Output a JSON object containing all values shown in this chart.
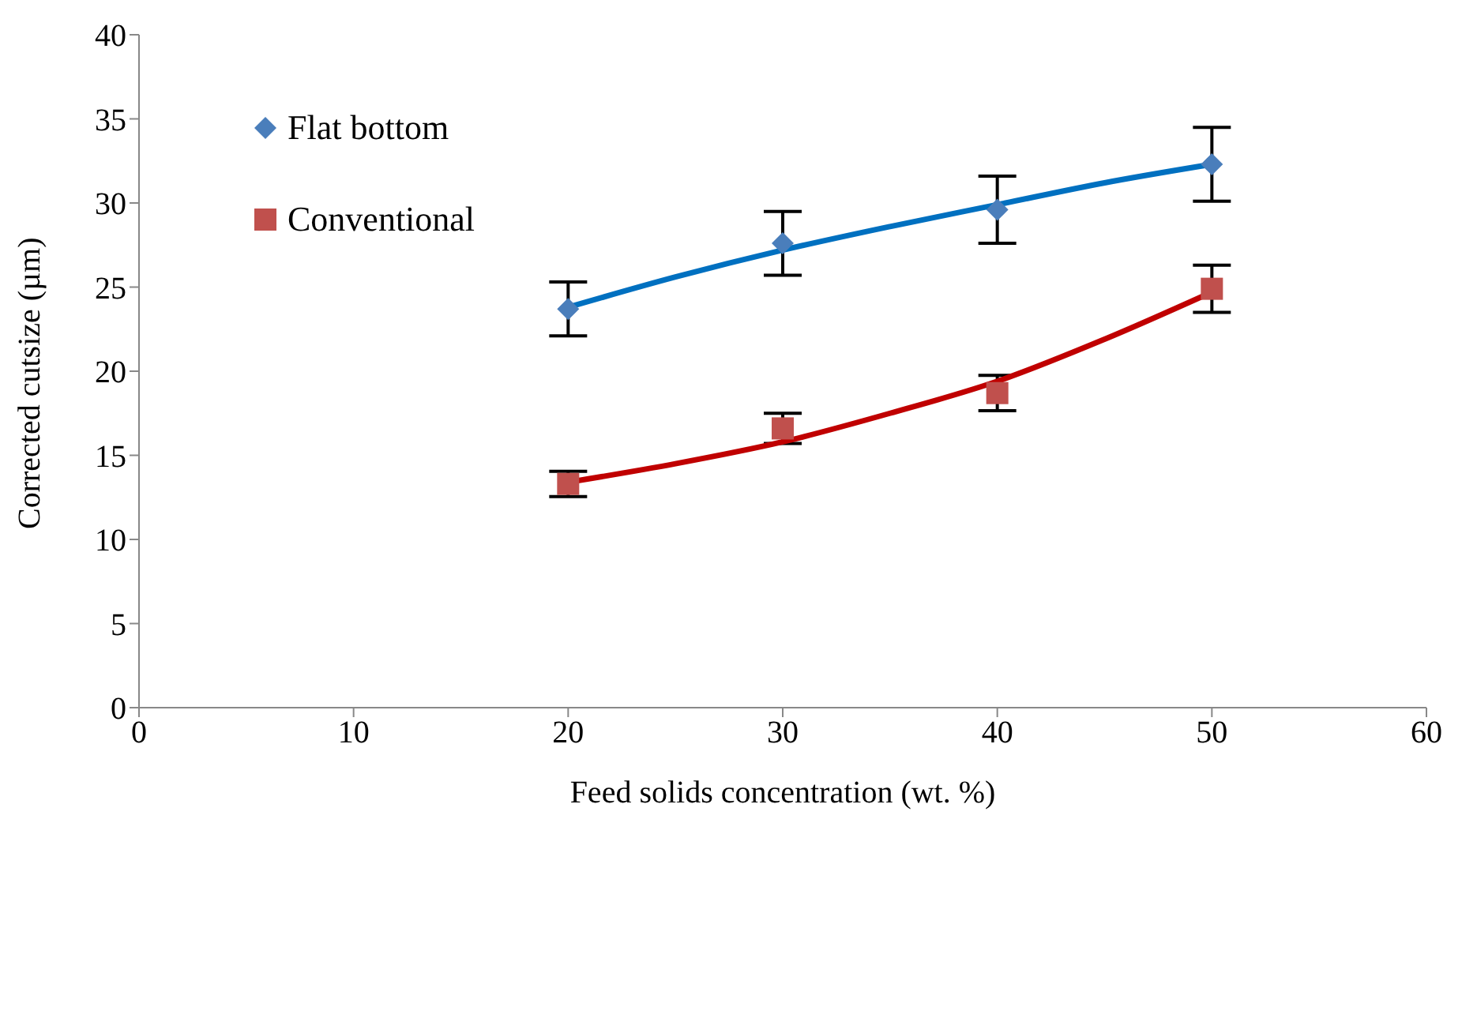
{
  "chart_data": {
    "type": "scatter",
    "xlabel": "Feed solids concentration (wt. %)",
    "ylabel": "Corrected cutsize  (µm)",
    "xlim": [
      0,
      60
    ],
    "xticks": [
      0,
      10,
      20,
      30,
      40,
      50,
      60
    ],
    "ylim": [
      0,
      40
    ],
    "yticks": [
      0,
      5,
      10,
      15,
      20,
      25,
      30,
      35,
      40
    ],
    "grid": false,
    "legend": "top left",
    "series": [
      {
        "name": "Flat bottom",
        "marker": "diamond",
        "color": "#4a7ebb",
        "x": [
          20,
          30,
          40,
          50
        ],
        "values": [
          23.7,
          27.6,
          29.6,
          32.3
        ],
        "errors": [
          1.6,
          1.9,
          2.0,
          2.2
        ]
      },
      {
        "name": "Conventional",
        "marker": "square",
        "color": "#c0504d",
        "x": [
          20,
          30,
          40,
          50
        ],
        "values": [
          13.3,
          16.6,
          18.7,
          24.9
        ],
        "errors": [
          0.75,
          0.9,
          1.05,
          1.4
        ]
      },
      {
        "type": "line",
        "marker": "none",
        "color": "#0070c0",
        "x": [
          20,
          25,
          30,
          35,
          40,
          45,
          50
        ],
        "values": [
          23.8,
          25.6,
          27.2,
          28.6,
          29.9,
          31.2,
          32.3
        ]
      },
      {
        "type": "line",
        "marker": "none",
        "color": "#c00000",
        "x": [
          20,
          25,
          30,
          35,
          40,
          45,
          50
        ],
        "values": [
          13.4,
          14.5,
          15.8,
          17.5,
          19.4,
          21.9,
          24.7
        ]
      }
    ]
  }
}
